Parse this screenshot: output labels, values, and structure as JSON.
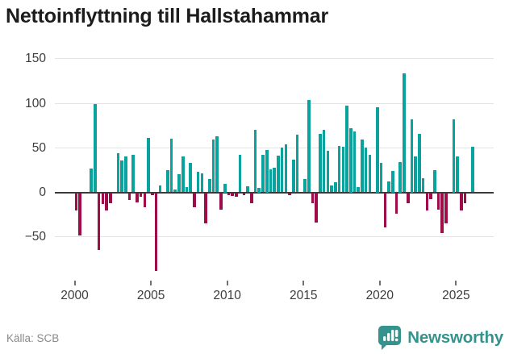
{
  "title": "Nettoinflyttning till Hallstahammar",
  "footer": {
    "source": "Källa: SCB",
    "brand": "Newsworthy"
  },
  "colors": {
    "positive_bar": "#0aa29c",
    "negative_bar": "#9e0d49",
    "brand_teal": "#35928c",
    "gridline": "#e4e4e4",
    "zero_line": "#3a3a3a",
    "axis_text": "#3d3d3d",
    "source_text": "#8a8a8a",
    "title_text": "#1c1c1c"
  },
  "chart_data": {
    "type": "bar",
    "title": "Nettoinflyttning till Hallstahammar",
    "xlabel": "",
    "ylabel": "",
    "frequency": "quarterly",
    "grid": true,
    "legend": false,
    "ylim": [
      -100,
      150
    ],
    "y_ticks": [
      150,
      100,
      50,
      0,
      -50
    ],
    "y_tick_labels": [
      "150",
      "100",
      "50",
      "0",
      "−50"
    ],
    "x_tick_labels": [
      "2000",
      "2005",
      "2010",
      "2015",
      "2020",
      "2025"
    ],
    "source": "Källa: SCB",
    "x": [
      "2000Q1",
      "2000Q2",
      "2000Q3",
      "2000Q4",
      "2001Q1",
      "2001Q2",
      "2001Q3",
      "2001Q4",
      "2002Q1",
      "2002Q2",
      "2002Q3",
      "2002Q4",
      "2003Q1",
      "2003Q2",
      "2003Q3",
      "2003Q4",
      "2004Q1",
      "2004Q2",
      "2004Q3",
      "2004Q4",
      "2005Q1",
      "2005Q2",
      "2005Q3",
      "2005Q4",
      "2006Q1",
      "2006Q2",
      "2006Q3",
      "2006Q4",
      "2007Q1",
      "2007Q2",
      "2007Q3",
      "2007Q4",
      "2008Q1",
      "2008Q2",
      "2008Q3",
      "2008Q4",
      "2009Q1",
      "2009Q2",
      "2009Q3",
      "2009Q4",
      "2010Q1",
      "2010Q2",
      "2010Q3",
      "2010Q4",
      "2011Q1",
      "2011Q2",
      "2011Q3",
      "2011Q4",
      "2012Q1",
      "2012Q2",
      "2012Q3",
      "2012Q4",
      "2013Q1",
      "2013Q2",
      "2013Q3",
      "2013Q4",
      "2014Q1",
      "2014Q2",
      "2014Q3",
      "2014Q4",
      "2015Q1",
      "2015Q2",
      "2015Q3",
      "2015Q4",
      "2016Q1",
      "2016Q2",
      "2016Q3",
      "2016Q4",
      "2017Q1",
      "2017Q2",
      "2017Q3",
      "2017Q4",
      "2018Q1",
      "2018Q2",
      "2018Q3",
      "2018Q4",
      "2019Q1",
      "2019Q2",
      "2019Q3",
      "2019Q4",
      "2020Q1",
      "2020Q2",
      "2020Q3",
      "2020Q4",
      "2021Q1",
      "2021Q2",
      "2021Q3",
      "2021Q4",
      "2022Q1",
      "2022Q2",
      "2022Q3",
      "2022Q4",
      "2023Q1",
      "2023Q2",
      "2023Q3",
      "2023Q4",
      "2024Q1",
      "2024Q2",
      "2024Q3",
      "2024Q4",
      "2025Q1",
      "2025Q2",
      "2025Q3",
      "2025Q4",
      "2026Q1"
    ],
    "series": [
      {
        "name": "Nettoinflyttning",
        "values": [
          -20,
          -48,
          0,
          0,
          27,
          99,
          -65,
          -13,
          -20,
          -12,
          0,
          44,
          36,
          40,
          -9,
          42,
          -11,
          -5,
          -17,
          61,
          -3,
          -88,
          8,
          0,
          25,
          60,
          3,
          20,
          40,
          6,
          33,
          -17,
          23,
          21,
          -35,
          15,
          59,
          63,
          -19,
          10,
          -3,
          -4,
          -5,
          42,
          -3,
          7,
          -12,
          70,
          5,
          42,
          48,
          26,
          28,
          41,
          50,
          54,
          -3,
          37,
          65,
          0,
          15,
          104,
          -12,
          -34,
          66,
          70,
          47,
          8,
          11,
          52,
          51,
          97,
          72,
          68,
          6,
          59,
          50,
          42,
          0,
          96,
          33,
          -39,
          12,
          24,
          -24,
          34,
          134,
          -12,
          82,
          40,
          66,
          16,
          -20,
          -8,
          25,
          -19,
          -46,
          -35,
          0,
          82,
          40,
          -20,
          -12,
          0,
          51
        ]
      }
    ]
  }
}
